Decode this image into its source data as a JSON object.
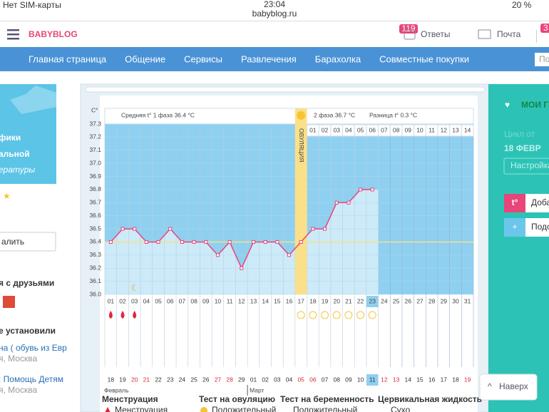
{
  "status": {
    "carrier": "Нет SIM-карты",
    "time": "23:04",
    "url": "babyblog.ru",
    "battery": "20 %"
  },
  "header": {
    "logo": "BABYBLOG",
    "answers_badge": "119",
    "answers": "Ответы",
    "mail": "Почта",
    "badge2": "3"
  },
  "nav": [
    "Главная страница",
    "Общение",
    "Сервисы",
    "Развлечения",
    "Барахолка",
    "Совместные покупки"
  ],
  "search": "По",
  "left": {
    "banner": [
      "фики",
      "альной",
      "ературы"
    ],
    "button": "алить",
    "friends": "я с друзьями",
    "installed": "е установили",
    "items": [
      {
        "title": "на ( обувь из Евр",
        "city": "я, Москва"
      },
      {
        "title": ": Помощь Детям",
        "city": "я, Москва"
      }
    ]
  },
  "right": {
    "groups": "МОИ ГР",
    "cycle_from": "Цикл от",
    "cycle_date": "18 ФЕВР",
    "settings": "Настройка",
    "add": "Доба",
    "sub": "Подс",
    "up": "Наверх"
  },
  "chart_data": {
    "type": "line",
    "y_unit": "С°",
    "phase1": "Средняя t° 1 фаза 36.4 °С",
    "ovulation": "ОВУЛЯЦИЯ",
    "phase2": "2 фаза 36.7 °С",
    "diff": "Разница t° 0.3 °С",
    "categories": [
      "01",
      "02",
      "03",
      "04",
      "05",
      "06",
      "07",
      "08",
      "09",
      "10",
      "11",
      "12",
      "13",
      "14",
      "15",
      "16",
      "17",
      "18",
      "19",
      "20",
      "21",
      "22",
      "23",
      "24",
      "25",
      "26",
      "27",
      "28",
      "29",
      "30",
      "31"
    ],
    "phase2_days": [
      "01",
      "02",
      "03",
      "04",
      "05",
      "06",
      "07",
      "08",
      "09",
      "10",
      "11",
      "12",
      "13",
      "14"
    ],
    "dates": [
      "18",
      "19",
      "20",
      "21",
      "22",
      "23",
      "24",
      "25",
      "26",
      "27",
      "28",
      "29",
      "01",
      "02",
      "03",
      "04",
      "05",
      "06",
      "07",
      "08",
      "09",
      "10",
      "11",
      "12",
      "13",
      "14",
      "15",
      "16",
      "17",
      "18",
      "19"
    ],
    "date_colors": [
      "#333",
      "#333",
      "#e0263a",
      "#e0263a",
      "#333",
      "#333",
      "#333",
      "#333",
      "#333",
      "#e0263a",
      "#e0263a",
      "#333",
      "#333",
      "#333",
      "#333",
      "#333",
      "#e0263a",
      "#e0263a",
      "#333",
      "#333",
      "#333",
      "#333",
      "#333",
      "#e0263a",
      "#e0263a",
      "#333",
      "#333",
      "#333",
      "#333",
      "#333",
      "#e0263a"
    ],
    "months": [
      "Февраль",
      "Март"
    ],
    "values": [
      36.4,
      36.5,
      36.5,
      36.4,
      36.4,
      36.5,
      36.4,
      36.4,
      36.4,
      36.3,
      36.4,
      36.2,
      36.4,
      36.4,
      36.4,
      36.3,
      36.4,
      36.5,
      36.5,
      36.7,
      36.7,
      36.8,
      36.8,
      null,
      null,
      null,
      null,
      null,
      null,
      null,
      null
    ],
    "color": "#e8457a",
    "cover_line": 36.4,
    "ylim": [
      36.0,
      37.3
    ],
    "yticks": [
      {
        "value": 36.0,
        "label": "36.0"
      },
      36.1,
      36.2,
      36.3,
      36.4,
      36.5,
      36.6,
      36.7,
      36.8,
      36.9,
      {
        "value": 37.0,
        "label": "37.0"
      },
      37.1,
      37.2,
      37.3
    ],
    "legend": [
      {
        "title": "Менструация",
        "item": "Менструация"
      },
      {
        "title": "Тест на овуляцию",
        "item": "Положительный"
      },
      {
        "title": "Тест на беременность",
        "item": "Положительный"
      },
      {
        "title": "Цервикальная жидкость",
        "item": "Сухо"
      }
    ]
  }
}
